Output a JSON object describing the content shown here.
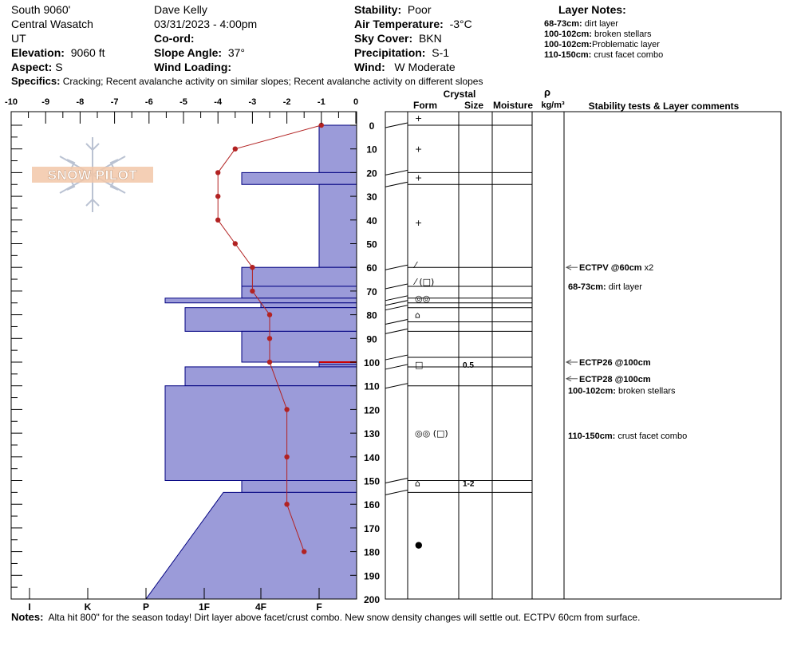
{
  "header": {
    "location": "South 9060'",
    "range": "Central Wasatch",
    "state": "UT",
    "elevation_label": "Elevation:",
    "elevation_value": "9060 ft",
    "aspect_label": "Aspect:",
    "aspect_value": "S",
    "observer": "Dave Kelly",
    "datetime": "03/31/2023 - 4:00pm",
    "coord_label": "Co-ord:",
    "slope_label": "Slope Angle:",
    "slope_value": "37°",
    "wind_loading_label": "Wind Loading:",
    "stability_label": "Stability:",
    "stability_value": "Poor",
    "air_temp_label": "Air Temperature:",
    "air_temp_value": "-3°C",
    "sky_label": "Sky Cover:",
    "sky_value": "BKN",
    "precip_label": "Precipitation:",
    "precip_value": "S-1",
    "wind_label": "Wind:",
    "wind_value": "W Moderate",
    "specifics_label": "Specifics:",
    "specifics_value": "Cracking;  Recent avalanche activity on similar slopes;  Recent avalanche activity on different slopes",
    "layer_notes_title": "Layer Notes:",
    "layer_notes": [
      {
        "range": "68-73cm:",
        "text": "dirt layer"
      },
      {
        "range": "100-102cm:",
        "text": "broken stellars"
      },
      {
        "range": "100-102cm:",
        "text": "Problematic layer"
      },
      {
        "range": "110-150cm:",
        "text": "crust facet combo"
      }
    ]
  },
  "logo_text": "SNOW PILOT",
  "footer": {
    "notes_label": "Notes:",
    "notes_value": "Alta hit 800\" for the season today! Dirt layer above facet/crust combo.  New snow density changes will settle out. ECTPV 60cm from surface."
  },
  "table_headers": {
    "crystal": "Crystal",
    "form": "Form",
    "size": "Size",
    "moisture": "Moisture",
    "rho": "ρ",
    "density_unit": "kg/m³",
    "stability": "Stability tests & Layer comments"
  },
  "colors": {
    "hardness_fill": "#9b9bd9",
    "hardness_stroke": "#000080",
    "temp": "#b22222",
    "accent": "#cc0000"
  },
  "chart_data": {
    "type": "snow-profile",
    "temp_axis": {
      "ticks": [
        "-10",
        "-9",
        "-8",
        "-7",
        "-6",
        "-5",
        "-4",
        "-3",
        "-2",
        "-1",
        "0"
      ],
      "range": [
        -10,
        0
      ],
      "unit": "°C"
    },
    "depth_axis": {
      "ticks": [
        "0",
        "10",
        "20",
        "30",
        "40",
        "50",
        "60",
        "70",
        "80",
        "90",
        "100",
        "110",
        "120",
        "130",
        "140",
        "150",
        "160",
        "170",
        "180",
        "190",
        "200"
      ],
      "range": [
        0,
        200
      ],
      "unit": "cm"
    },
    "hardness_axis": {
      "ticks": [
        "I",
        "K",
        "P",
        "1F",
        "4F",
        "F"
      ],
      "order_left_to_right": "hardest to softest"
    },
    "hardness_layers": [
      {
        "top": 0,
        "bottom": 20,
        "hardness": "F"
      },
      {
        "top": 20,
        "bottom": 25,
        "hardness": "4F+"
      },
      {
        "top": 25,
        "bottom": 60,
        "hardness": "F"
      },
      {
        "top": 60,
        "bottom": 68,
        "hardness": "4F+"
      },
      {
        "top": 68,
        "bottom": 73,
        "hardness": "4F+"
      },
      {
        "top": 73,
        "bottom": 75,
        "hardness": "P-"
      },
      {
        "top": 75,
        "bottom": 77,
        "hardness": "4F"
      },
      {
        "top": 77,
        "bottom": 87,
        "hardness": "1F+"
      },
      {
        "top": 87,
        "bottom": 100,
        "hardness": "4F+"
      },
      {
        "top": 100,
        "bottom": 101,
        "hardness": "F"
      },
      {
        "top": 101,
        "bottom": 102,
        "hardness": "F"
      },
      {
        "top": 102,
        "bottom": 110,
        "hardness": "1F+"
      },
      {
        "top": 110,
        "bottom": 150,
        "hardness": "P-"
      },
      {
        "top": 150,
        "bottom": 155,
        "hardness": "4F+"
      },
      {
        "top": 155,
        "bottom": 200,
        "hardness": "1F-",
        "bottom_hardness": "P"
      }
    ],
    "temperature_profile": [
      {
        "depth": 0,
        "temp": -1.0
      },
      {
        "depth": 10,
        "temp": -3.5
      },
      {
        "depth": 20,
        "temp": -4.0
      },
      {
        "depth": 30,
        "temp": -4.0
      },
      {
        "depth": 40,
        "temp": -4.0
      },
      {
        "depth": 50,
        "temp": -3.5
      },
      {
        "depth": 60,
        "temp": -3.0
      },
      {
        "depth": 70,
        "temp": -3.0
      },
      {
        "depth": 80,
        "temp": -2.5
      },
      {
        "depth": 90,
        "temp": -2.5
      },
      {
        "depth": 100,
        "temp": -2.5
      },
      {
        "depth": 120,
        "temp": -2.0
      },
      {
        "depth": 140,
        "temp": -2.0
      },
      {
        "depth": 160,
        "temp": -2.0
      },
      {
        "depth": 180,
        "temp": -1.5
      }
    ],
    "layer_boundaries": [
      0,
      20,
      25,
      60,
      68,
      73,
      75,
      77,
      83,
      87,
      98,
      102,
      110,
      150,
      155
    ],
    "crystals": [
      {
        "depth": -3,
        "form": "+",
        "size": ""
      },
      {
        "depth": 10,
        "form": "+",
        "size": ""
      },
      {
        "depth": 22,
        "form": "+",
        "size": ""
      },
      {
        "depth": 41,
        "form": "+",
        "size": ""
      },
      {
        "depth": 59,
        "form": "⁄",
        "size": ""
      },
      {
        "depth": 66,
        "form": "⁄ (□)",
        "size": ""
      },
      {
        "depth": 73,
        "form": "◎◎",
        "size": ""
      },
      {
        "depth": 80,
        "form": "⌂",
        "size": ""
      },
      {
        "depth": 101,
        "form": "□",
        "size": "0.5"
      },
      {
        "depth": 130,
        "form": "◎◎ (□)",
        "size": ""
      },
      {
        "depth": 151,
        "form": "⌂",
        "size": "1-2"
      },
      {
        "depth": 177,
        "form": "●",
        "size": ""
      }
    ],
    "comments": [
      {
        "depth": 60,
        "label": "ECTPV @60cm",
        "extra": "x2",
        "arrow": true
      },
      {
        "depth": 68,
        "label": "68-73cm:",
        "extra": "dirt layer",
        "arrow": false
      },
      {
        "depth": 100,
        "label": "ECTP26 @100cm",
        "extra": "",
        "arrow": true
      },
      {
        "depth": 107,
        "label": "ECTP28 @100cm",
        "extra": "",
        "arrow": true
      },
      {
        "depth": 112,
        "label": "100-102cm:",
        "extra": "broken stellars",
        "arrow": false
      },
      {
        "depth": 131,
        "label": "110-150cm:",
        "extra": "crust facet combo",
        "arrow": false
      }
    ]
  }
}
